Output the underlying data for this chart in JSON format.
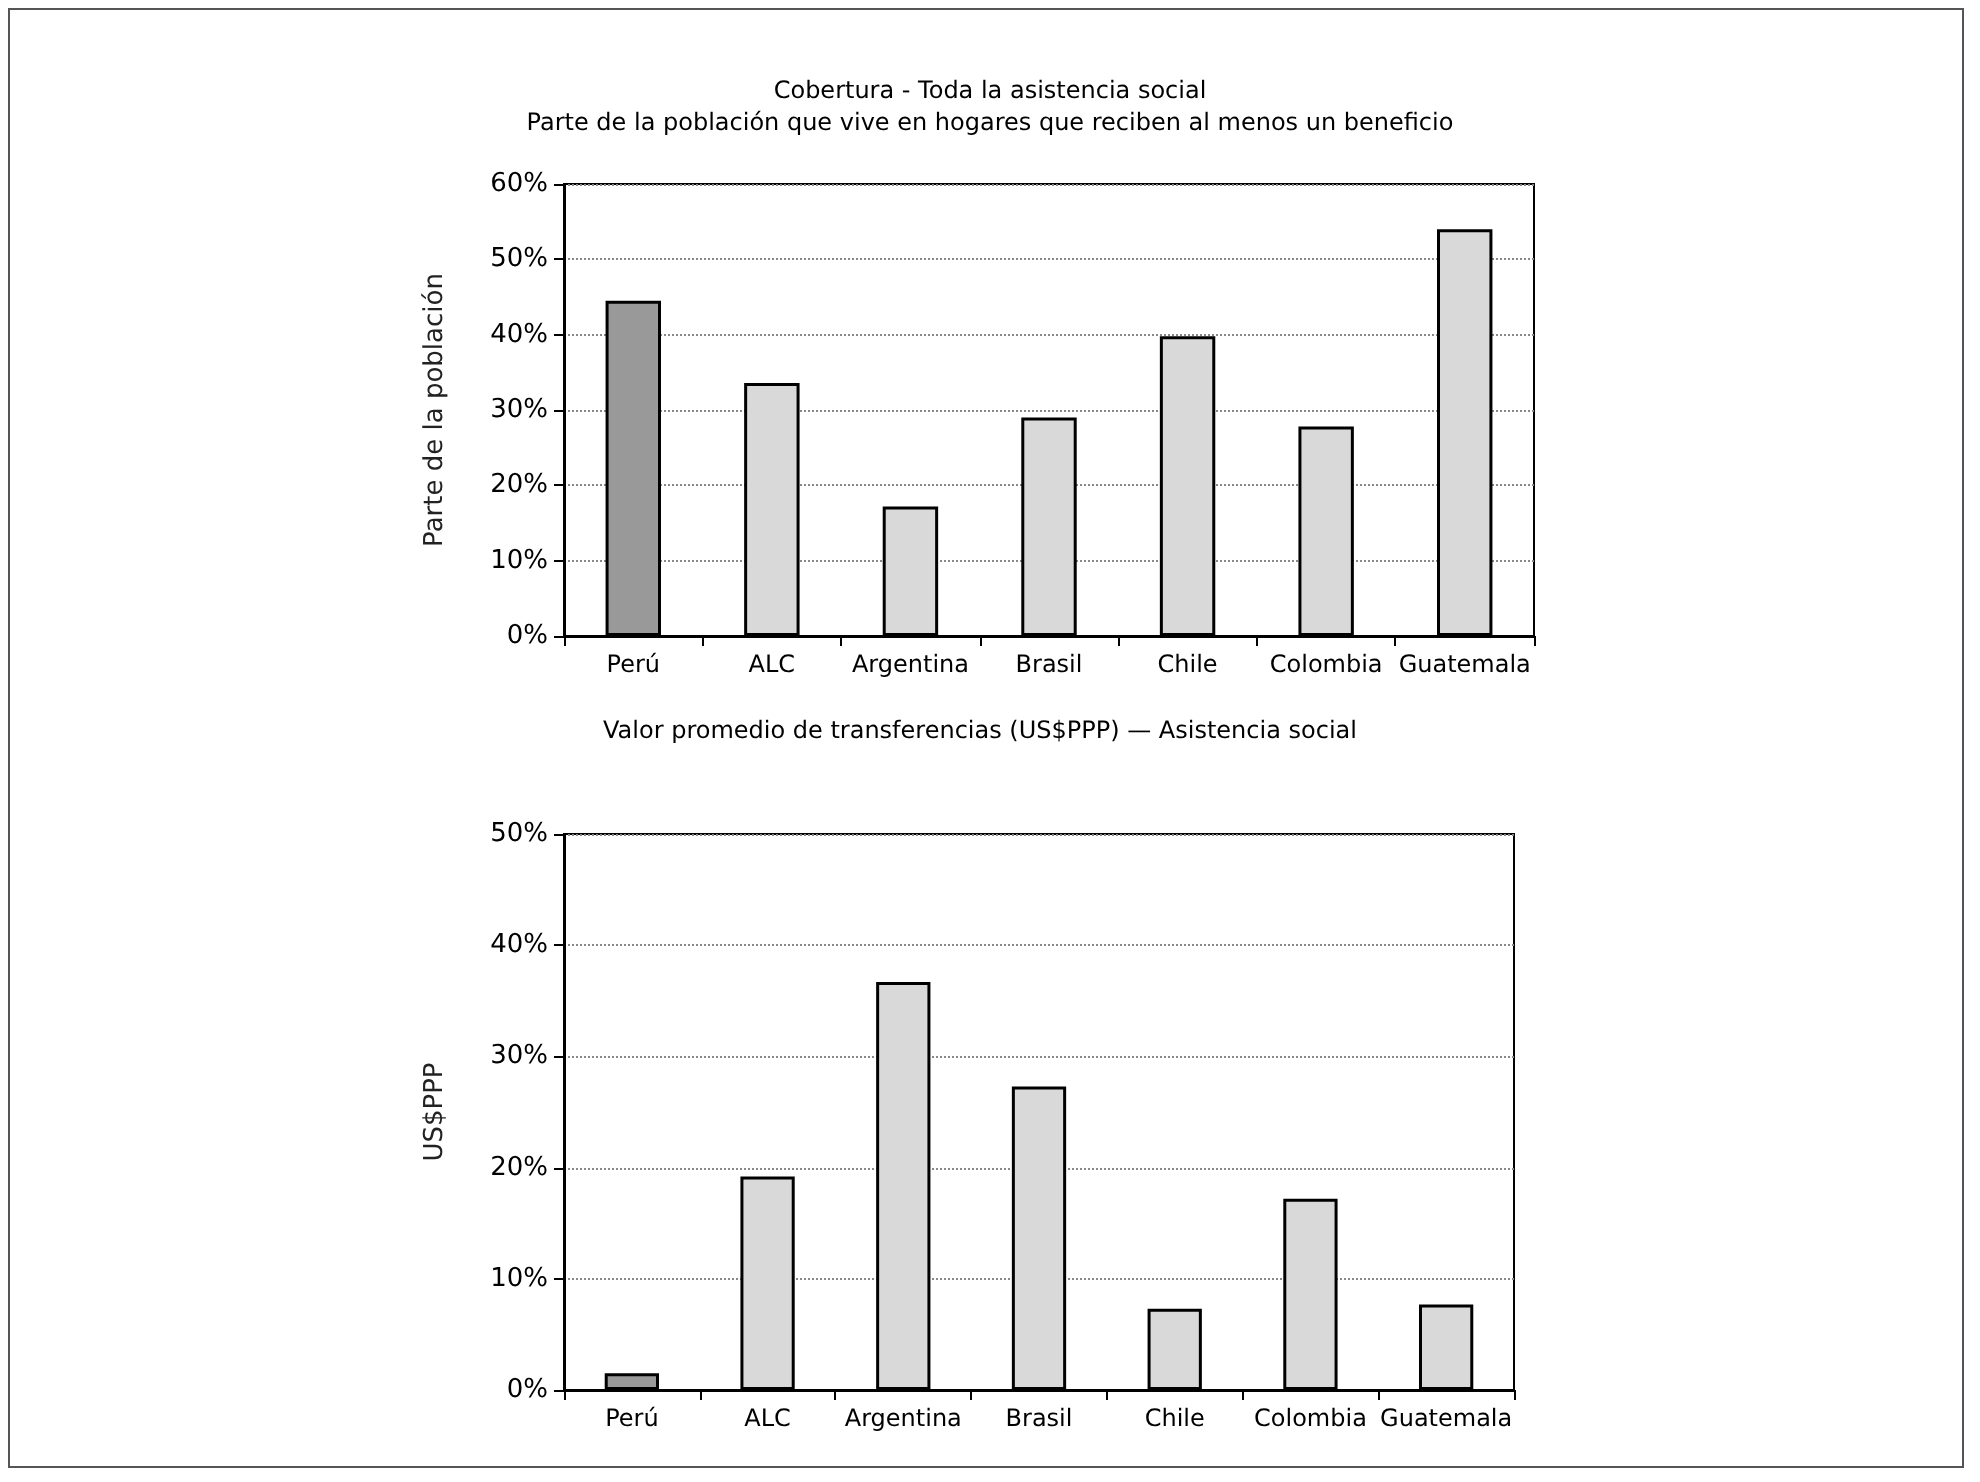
{
  "chart_data": [
    {
      "type": "bar",
      "title": "Cobertura - Toda la asistencia social",
      "subtitle": "Parte de la población que vive en hogares que reciben al menos un beneficio",
      "ylabel": "Parte de la población",
      "categories": [
        "Perú",
        "ALC",
        "Argentina",
        "Brasil",
        "Chile",
        "Colombia",
        "Guatemala"
      ],
      "values": [
        44.5,
        33.6,
        17.2,
        29,
        39.8,
        27.8,
        54
      ],
      "colors": [
        "#999999",
        "#d9d9d9",
        "#d9d9d9",
        "#d9d9d9",
        "#d9d9d9",
        "#d9d9d9",
        "#d9d9d9"
      ],
      "ylim": [
        0,
        60
      ],
      "yticks": [
        {
          "value": 0,
          "label": "0%"
        },
        {
          "value": 10,
          "label": "10%"
        },
        {
          "value": 20,
          "label": "20%"
        },
        {
          "value": 30,
          "label": "30%"
        },
        {
          "value": 40,
          "label": "40%"
        },
        {
          "value": 50,
          "label": "50%"
        },
        {
          "value": 60,
          "label": "60%"
        }
      ],
      "grid": "y"
    },
    {
      "type": "bar",
      "title": "Valor promedio de transferencias (US$PPP) — Asistencia social",
      "ylabel": "US$PPP",
      "categories": [
        "Perú",
        "ALC",
        "Argentina",
        "Brasil",
        "Chile",
        "Colombia",
        "Guatemala"
      ],
      "values": [
        1.5,
        19.2,
        36.7,
        27.3,
        7.3,
        17.2,
        7.7
      ],
      "colors": [
        "#999999",
        "#d9d9d9",
        "#d9d9d9",
        "#d9d9d9",
        "#d9d9d9",
        "#d9d9d9",
        "#d9d9d9"
      ],
      "ylim": [
        0,
        50
      ],
      "yticks": [
        {
          "value": 0,
          "label": "0%"
        },
        {
          "value": 10,
          "label": "10%"
        },
        {
          "value": 20,
          "label": "20%"
        },
        {
          "value": 30,
          "label": "30%"
        },
        {
          "value": 40,
          "label": "40%"
        },
        {
          "value": 50,
          "label": "50%"
        }
      ],
      "grid": "y"
    }
  ]
}
